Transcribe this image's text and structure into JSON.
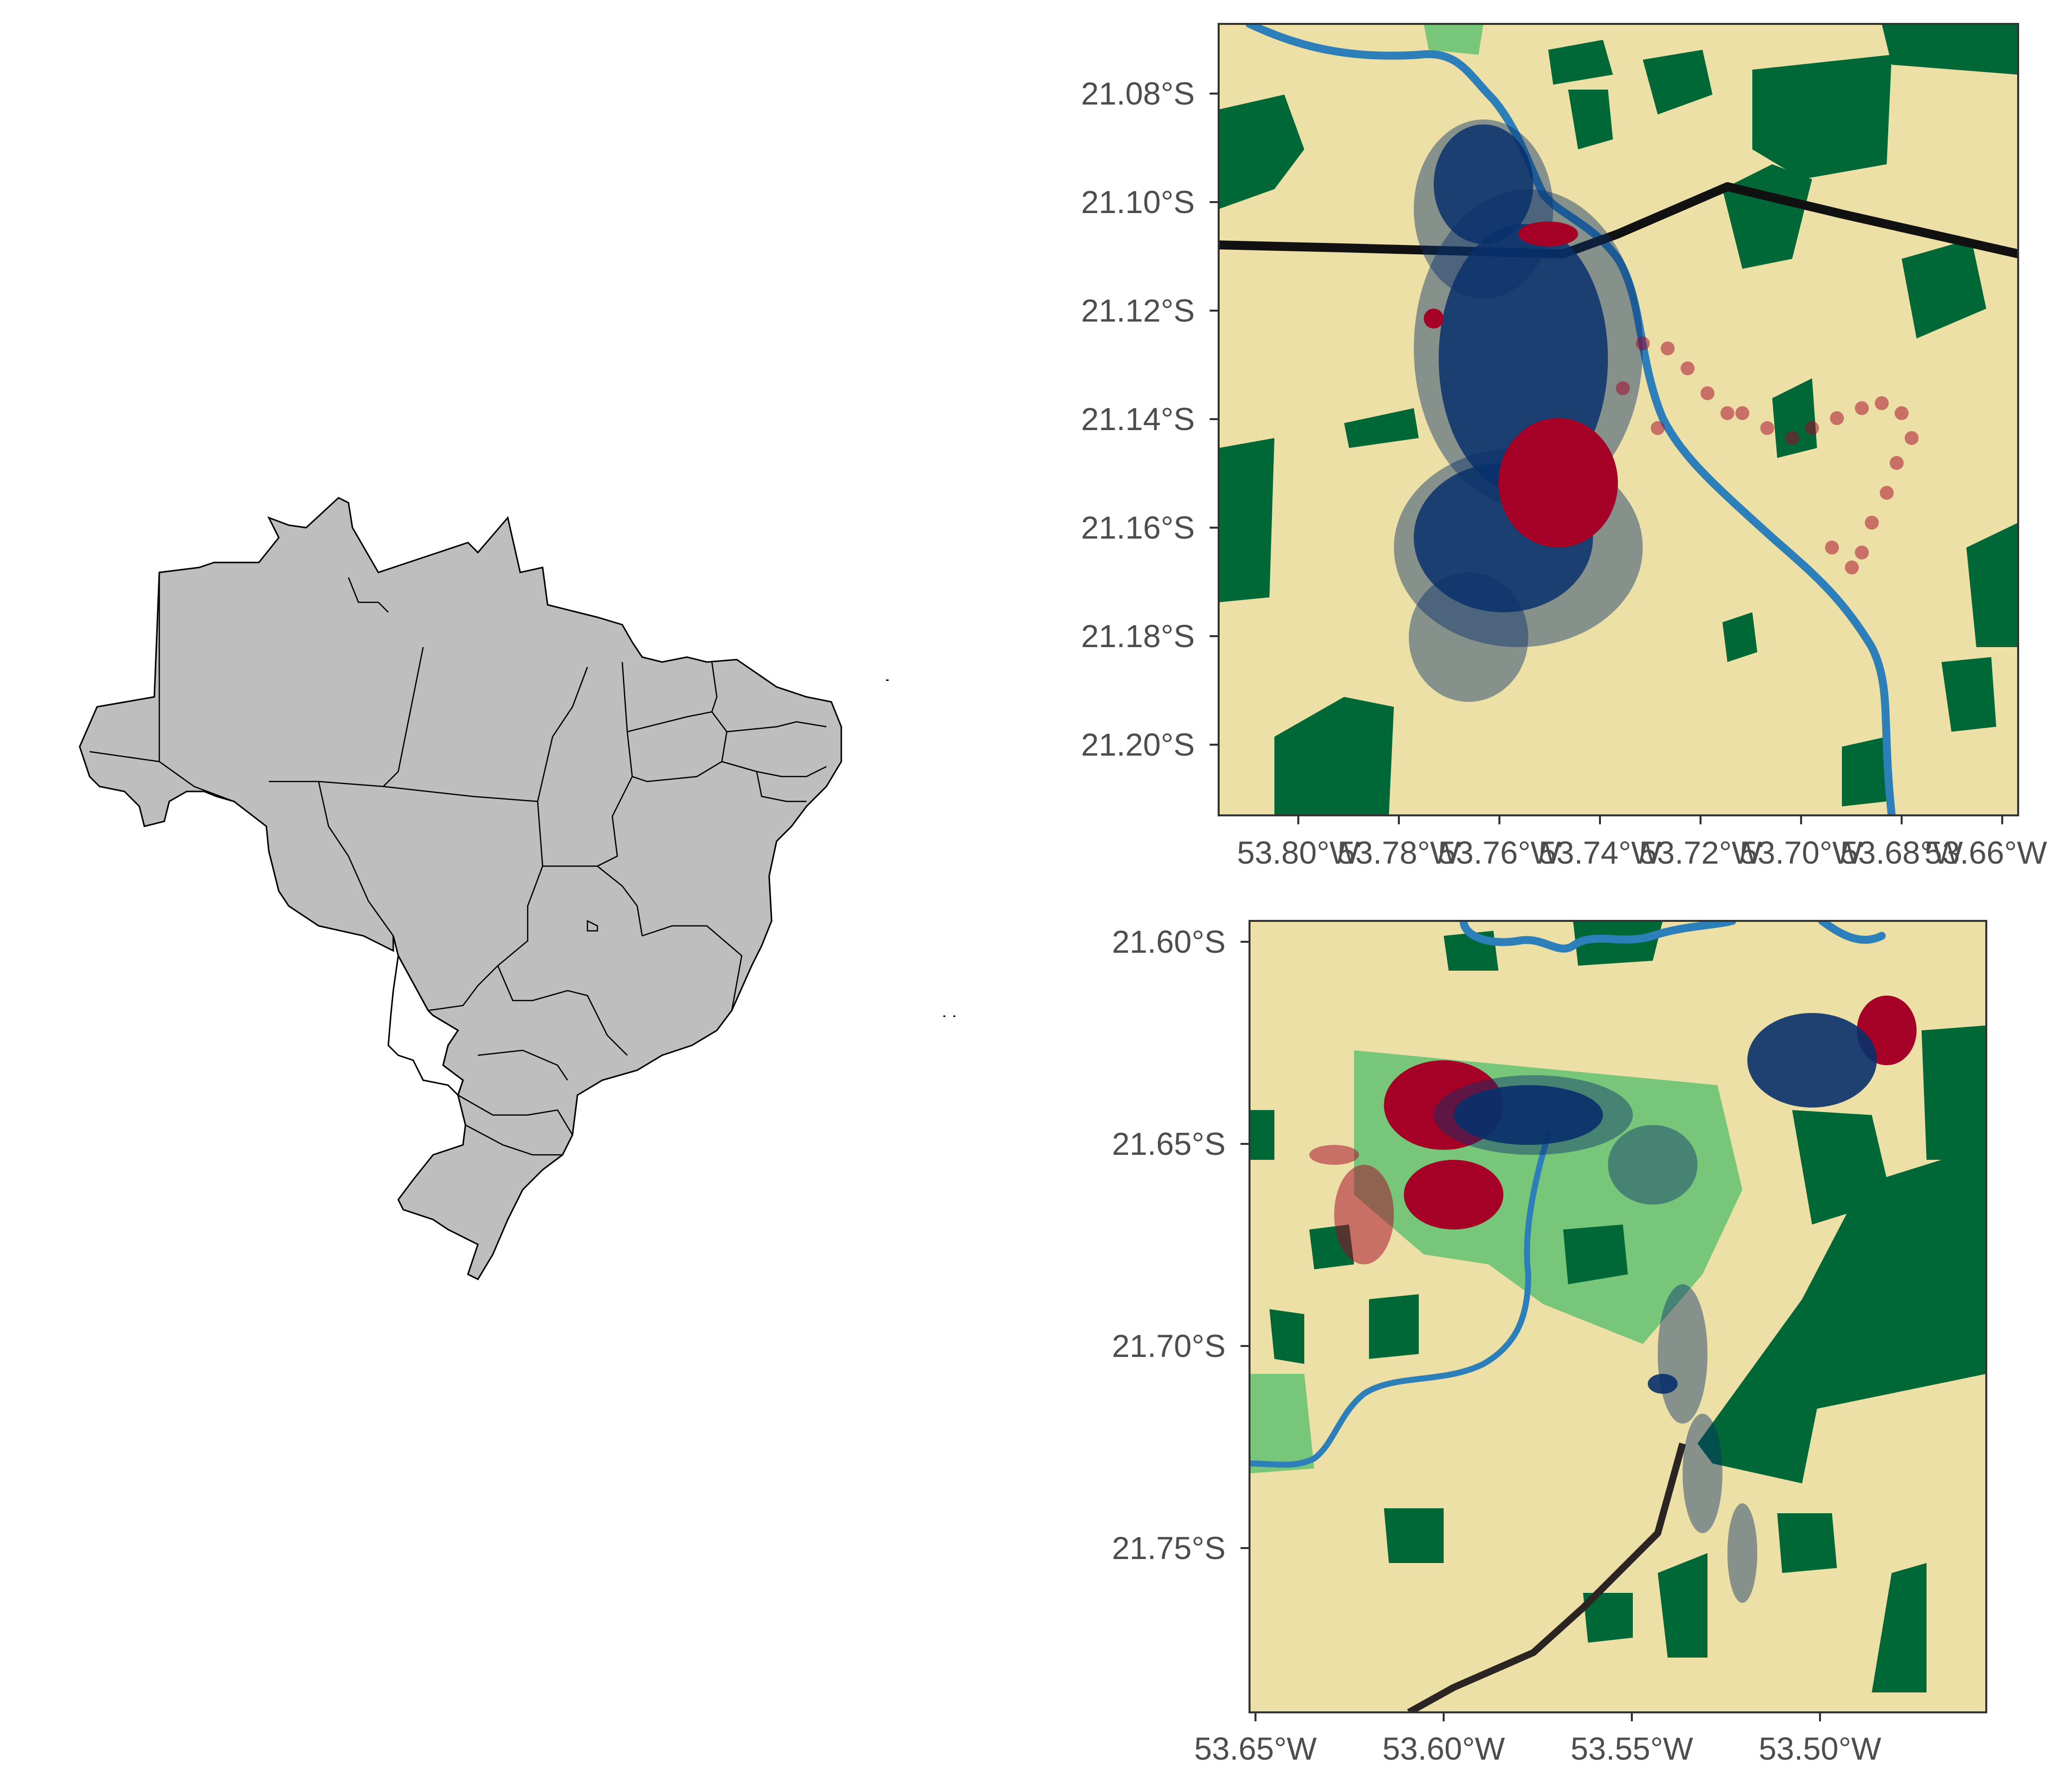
{
  "colors": {
    "land_gray": "#bebebe",
    "highlight_state": "#ffffff",
    "pasture": "#ede0a6",
    "forest": "#006837",
    "light_forest": "#78c679",
    "river": "#2c7fb8",
    "road": "#111111",
    "points_blue": "#08306b",
    "points_red": "#a50026"
  },
  "overview_map": {
    "description_icon": "brazil-states-map",
    "highlighted_state": "Mato Grosso do Sul"
  },
  "panel_top": {
    "y_ticks": [
      "21.08°S",
      "21.10°S",
      "21.12°S",
      "21.14°S",
      "21.16°S",
      "21.18°S",
      "21.20°S"
    ],
    "x_ticks": [
      "53.80°W",
      "53.78°W",
      "53.76°W",
      "53.74°W",
      "53.72°W",
      "53.70°W",
      "53.68°W",
      "53.66°W"
    ]
  },
  "panel_bottom": {
    "y_ticks": [
      "21.60°S",
      "21.65°S",
      "21.70°S",
      "21.75°S"
    ],
    "x_ticks": [
      "53.65°W",
      "53.60°W",
      "53.55°W",
      "53.50°W"
    ]
  }
}
